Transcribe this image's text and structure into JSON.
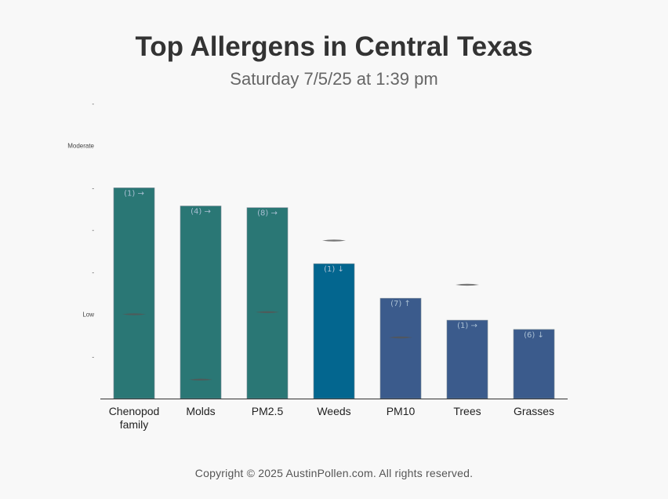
{
  "title": "Top Allergens in Central Texas",
  "subtitle": "Saturday 7/5/25 at 1:39 pm",
  "copyright": "Copyright © 2025 AustinPollen.com.  All rights reserved.",
  "chart_data": {
    "type": "bar",
    "title": "Top Allergens in Central Texas",
    "subtitle": "Saturday 7/5/25 at 1:39 pm",
    "xlabel": "",
    "ylabel": "",
    "ylim": [
      0,
      7
    ],
    "grid": false,
    "y_ticks": [
      {
        "value": 1,
        "label": "-"
      },
      {
        "value": 2,
        "label": "Low"
      },
      {
        "value": 3,
        "label": "-"
      },
      {
        "value": 4,
        "label": "-"
      },
      {
        "value": 5,
        "label": "-"
      },
      {
        "value": 6,
        "label": "Moderate"
      },
      {
        "value": 7,
        "label": "-"
      }
    ],
    "categories": [
      "Chenopod family",
      "Molds",
      "PM2.5",
      "Weeds",
      "PM10",
      "Trees",
      "Grasses"
    ],
    "category_lines": [
      [
        "Chenopod",
        "family"
      ],
      [
        "Molds"
      ],
      [
        "PM2.5"
      ],
      [
        "Weeds"
      ],
      [
        "PM10"
      ],
      [
        "Trees"
      ],
      [
        "Grasses"
      ]
    ],
    "values": [
      5.0,
      4.57,
      4.53,
      3.2,
      2.38,
      1.86,
      1.64
    ],
    "markers": [
      2.0,
      0.45,
      2.05,
      3.75,
      1.45,
      2.7,
      null
    ],
    "data_labels": [
      "(1) →",
      "(4) →",
      "(8) →",
      "(1) ↓",
      "(7) ↑",
      "(1) →",
      "(6) ↓"
    ],
    "colors": [
      "#2a7775",
      "#2a7775",
      "#2a7775",
      "#03668f",
      "#3b5b8c",
      "#3b5b8c",
      "#3b5b8c"
    ],
    "label_color": "#a9bfd3",
    "marker_color": "#555555",
    "axis_color": "#333333"
  }
}
